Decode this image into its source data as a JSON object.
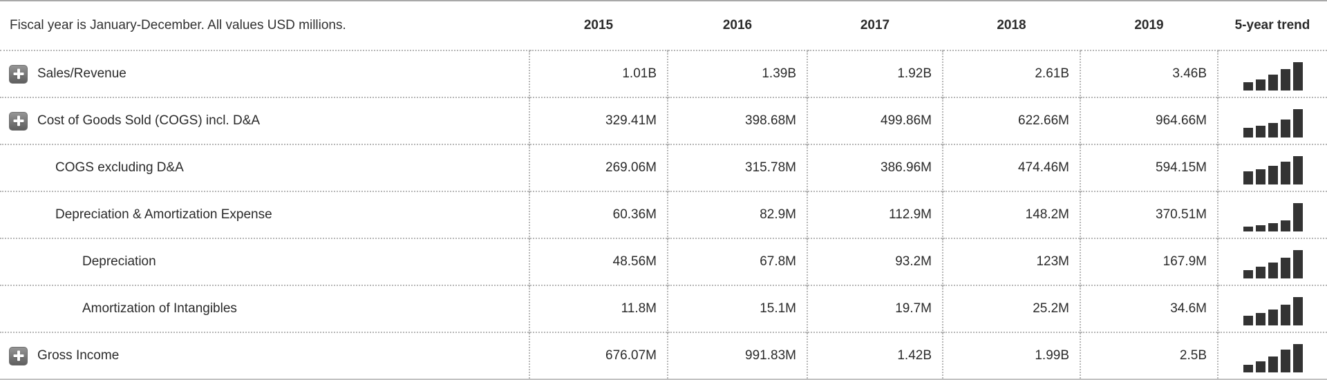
{
  "header": {
    "note": "Fiscal year is January-December. All values USD millions.",
    "years": [
      "2015",
      "2016",
      "2017",
      "2018",
      "2019"
    ],
    "trend_label": "5-year trend"
  },
  "colors": {
    "bar": "#333333",
    "dotted_grid": "#b5b5b5",
    "solid_rule": "#a8a8a8",
    "text": "#2a2a2a",
    "expand_btn_top": "#959595",
    "expand_btn_bottom": "#5e5e5e"
  },
  "icons": {
    "expand": "plus-icon"
  },
  "rows": [
    {
      "label": "Sales/Revenue",
      "indent": 0,
      "expandable": true,
      "values": [
        "1.01B",
        "1.39B",
        "1.92B",
        "2.61B",
        "3.46B"
      ]
    },
    {
      "label": "Cost of Goods Sold (COGS) incl. D&A",
      "indent": 0,
      "expandable": true,
      "values": [
        "329.41M",
        "398.68M",
        "499.86M",
        "622.66M",
        "964.66M"
      ]
    },
    {
      "label": "COGS excluding D&A",
      "indent": 1,
      "expandable": false,
      "values": [
        "269.06M",
        "315.78M",
        "386.96M",
        "474.46M",
        "594.15M"
      ]
    },
    {
      "label": "Depreciation & Amortization Expense",
      "indent": 1,
      "expandable": false,
      "values": [
        "60.36M",
        "82.9M",
        "112.9M",
        "148.2M",
        "370.51M"
      ]
    },
    {
      "label": "Depreciation",
      "indent": 2,
      "expandable": false,
      "values": [
        "48.56M",
        "67.8M",
        "93.2M",
        "123M",
        "167.9M"
      ]
    },
    {
      "label": "Amortization of Intangibles",
      "indent": 2,
      "expandable": false,
      "values": [
        "11.8M",
        "15.1M",
        "19.7M",
        "25.2M",
        "34.6M"
      ]
    },
    {
      "label": "Gross Income",
      "indent": 0,
      "expandable": true,
      "values": [
        "676.07M",
        "991.83M",
        "1.42B",
        "1.99B",
        "2.5B"
      ]
    }
  ],
  "chart_data": {
    "type": "bar",
    "title": "5-year trend sparklines",
    "unit": "USD millions",
    "x": [
      "2015",
      "2016",
      "2017",
      "2018",
      "2019"
    ],
    "series": [
      {
        "name": "Sales/Revenue",
        "values": [
          1010,
          1390,
          1920,
          2610,
          3460
        ]
      },
      {
        "name": "Cost of Goods Sold (COGS) incl. D&A",
        "values": [
          329.41,
          398.68,
          499.86,
          622.66,
          964.66
        ]
      },
      {
        "name": "COGS excluding D&A",
        "values": [
          269.06,
          315.78,
          386.96,
          474.46,
          594.15
        ]
      },
      {
        "name": "Depreciation & Amortization Expense",
        "values": [
          60.36,
          82.9,
          112.9,
          148.2,
          370.51
        ]
      },
      {
        "name": "Depreciation",
        "values": [
          48.56,
          67.8,
          93.2,
          123,
          167.9
        ]
      },
      {
        "name": "Amortization of Intangibles",
        "values": [
          11.8,
          15.1,
          19.7,
          25.2,
          34.6
        ]
      },
      {
        "name": "Gross Income",
        "values": [
          676.07,
          991.83,
          1420,
          1990,
          2500
        ]
      }
    ]
  }
}
